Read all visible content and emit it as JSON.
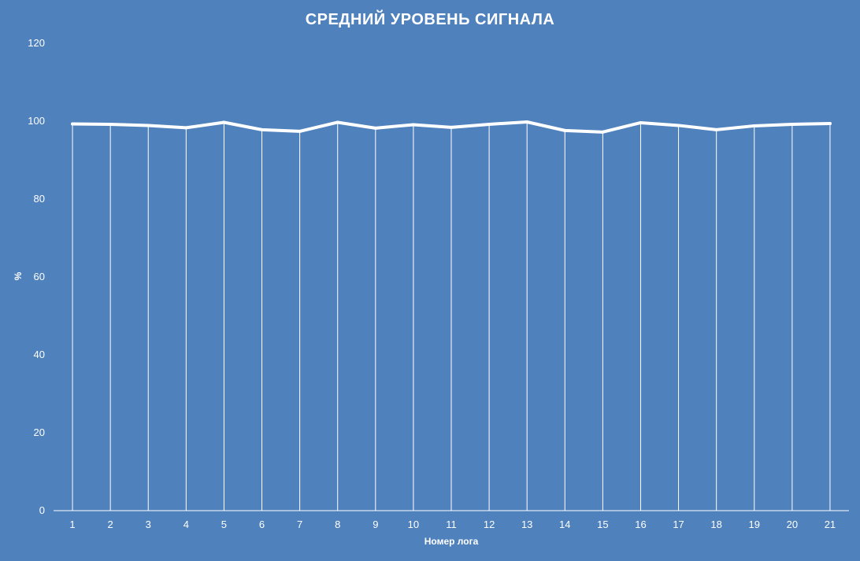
{
  "chart_data": {
    "type": "line",
    "title": "СРЕДНИЙ УРОВЕНЬ СИГНАЛА",
    "xlabel": "Номер лога",
    "ylabel": "%",
    "categories": [
      "1",
      "2",
      "3",
      "4",
      "5",
      "6",
      "7",
      "8",
      "9",
      "10",
      "11",
      "12",
      "13",
      "14",
      "15",
      "16",
      "17",
      "18",
      "19",
      "20",
      "21"
    ],
    "series": [
      {
        "values": [
          99.3,
          99.2,
          98.9,
          98.3,
          99.7,
          97.8,
          97.4,
          99.7,
          98.2,
          99.1,
          98.4,
          99.2,
          99.8,
          97.6,
          97.2,
          99.6,
          98.9,
          97.8,
          98.8,
          99.2,
          99.4
        ]
      }
    ],
    "ylim": [
      0,
      120
    ],
    "yticks": [
      0,
      20,
      40,
      60,
      80,
      100,
      120
    ],
    "grid": "vertical",
    "legend": "none",
    "colors": {
      "background": "#4f81bd",
      "line": "#ffffff",
      "gridline": "#ffffff",
      "text": "#ffffff"
    }
  }
}
